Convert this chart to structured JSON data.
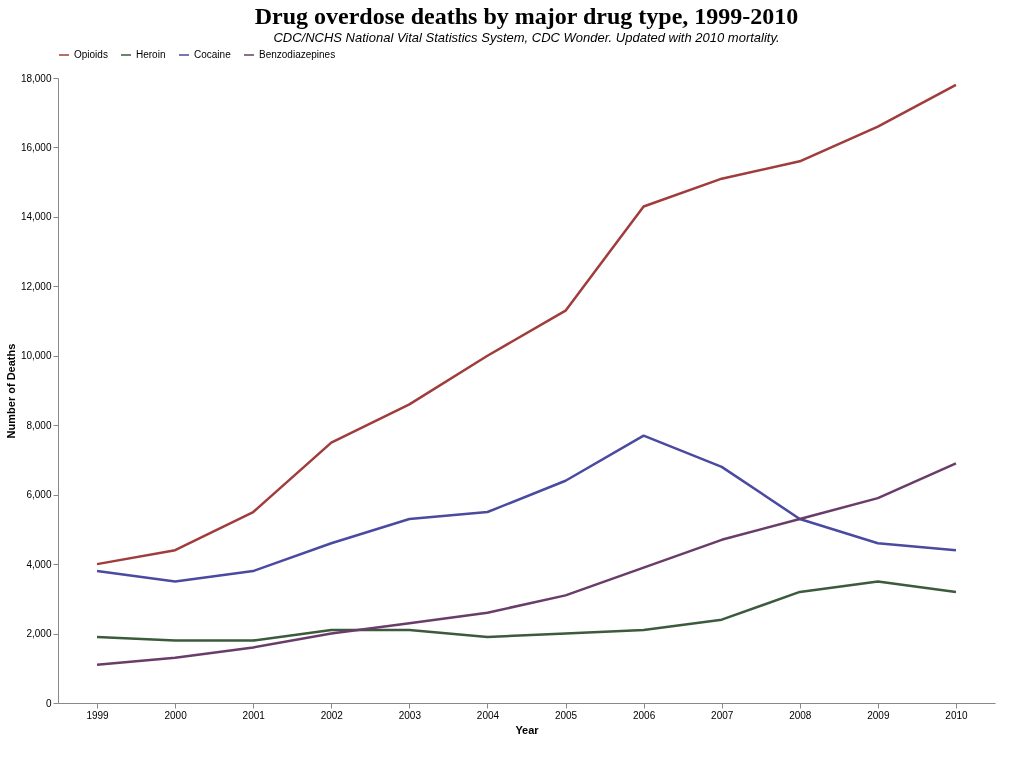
{
  "chart_data": {
    "type": "line",
    "title": "Drug overdose deaths by major drug type, 1999-2010",
    "categories": [
      "1999",
      "2000",
      "2001",
      "2002",
      "2003",
      "2004",
      "2005",
      "2006",
      "2007",
      "2008",
      "2009",
      "2010"
    ],
    "series": [
      {
        "name": "Opioids",
        "color": "#a03c3c",
        "values": [
          4000,
          4400,
          5500,
          7500,
          8600,
          10000,
          11300,
          14300,
          15100,
          15600,
          16600,
          17800
        ]
      },
      {
        "name": "Heroin",
        "color": "#3c5a3c",
        "values": [
          1900,
          1800,
          1800,
          2100,
          2100,
          1900,
          2000,
          2100,
          2400,
          3200,
          3500,
          3200
        ]
      },
      {
        "name": "Cocaine",
        "color": "#4a4aa0",
        "values": [
          3800,
          3500,
          3800,
          4600,
          5300,
          5500,
          6400,
          7700,
          6800,
          5300,
          4600,
          4400
        ]
      },
      {
        "name": "Benzodiazepines",
        "color": "#6a3c6a",
        "values": [
          1100,
          1300,
          1600,
          2000,
          2300,
          2600,
          3100,
          3900,
          4700,
          5300,
          5900,
          6900
        ]
      }
    ],
    "xlabel": "Year",
    "ylabel": "Number of Deaths",
    "ylim": [
      0,
      18000
    ],
    "yticks": [
      {
        "value": 0,
        "label": "0"
      },
      {
        "value": 2000,
        "label": "2,000"
      },
      {
        "value": 4000,
        "label": "4,000"
      },
      {
        "value": 6000,
        "label": "6,000"
      },
      {
        "value": 8000,
        "label": "8,000"
      },
      {
        "value": 10000,
        "label": "10,000"
      },
      {
        "value": 12000,
        "label": "12,000"
      },
      {
        "value": 14000,
        "label": "14,000"
      },
      {
        "value": 16000,
        "label": "16,000"
      },
      {
        "value": 18000,
        "label": "18,000"
      }
    ],
    "legend": "top",
    "grid": false,
    "marker": "none",
    "line_style": "solid",
    "annotations": [
      "CDC/NCHS National Vital Statistics System, CDC Wonder. Updated with 2010 mortality."
    ]
  }
}
